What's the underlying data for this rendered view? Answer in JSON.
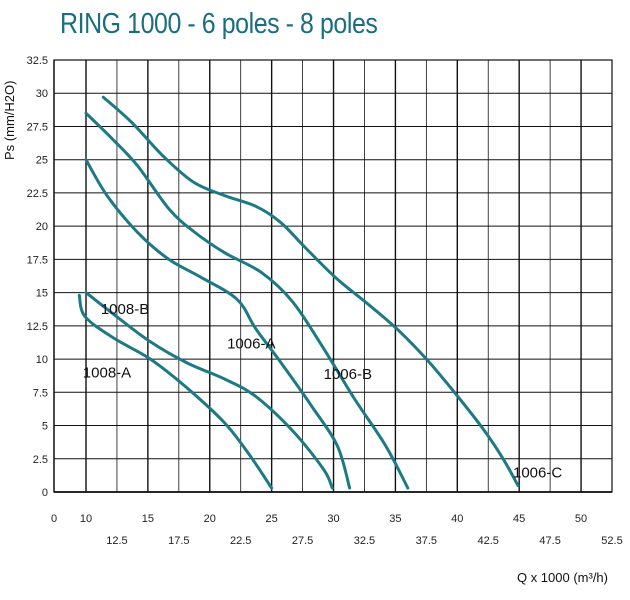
{
  "chart_data": {
    "type": "line",
    "title": "RING 1000 - 6 poles - 8 poles",
    "xlabel": "Q x 1000 (m³/h)",
    "ylabel": "Ps (mm/H2O)",
    "xlim": [
      0,
      52.5
    ],
    "ylim": [
      0,
      32.5
    ],
    "x_ticks_major": [
      "0",
      "10",
      "15",
      "20",
      "25",
      "30",
      "35",
      "40",
      "45",
      "50"
    ],
    "x_ticks_minor": [
      "12.5",
      "17.5",
      "22.5",
      "27.5",
      "32.5",
      "37.5",
      "42.5",
      "47.5",
      "52.5"
    ],
    "y_ticks": [
      "0",
      "2.5",
      "5",
      "7.5",
      "10",
      "12.5",
      "15",
      "17.5",
      "20",
      "22.5",
      "25",
      "27.5",
      "30",
      "32.5"
    ],
    "grid": true,
    "line_color": "#1d7a84",
    "series": [
      {
        "name": "1008-A",
        "points": [
          [
            0.7,
            14.8
          ],
          [
            2.5,
            13.2
          ],
          [
            5,
            11.6
          ],
          [
            8,
            10
          ],
          [
            11,
            7.8
          ],
          [
            14,
            5.2
          ],
          [
            16,
            2.8
          ],
          [
            17.8,
            0.3
          ]
        ],
        "label_at": [
          1.8,
          8.6
        ]
      },
      {
        "name": "1008-B",
        "points": [
          [
            2.8,
            15
          ],
          [
            5,
            13.4
          ],
          [
            8,
            11.3
          ],
          [
            11,
            9.7
          ],
          [
            14,
            8.5
          ],
          [
            16.5,
            7.2
          ],
          [
            19.5,
            4.6
          ],
          [
            22,
            1.7
          ],
          [
            22.7,
            0.3
          ]
        ],
        "label_at": [
          4,
          13.4
        ]
      },
      {
        "name": "1006-A",
        "points": [
          [
            2.8,
            25
          ],
          [
            4.5,
            22.3
          ],
          [
            7,
            19.5
          ],
          [
            9.5,
            17.5
          ],
          [
            12,
            16.2
          ],
          [
            15,
            14.5
          ],
          [
            16.5,
            12.3
          ],
          [
            18.5,
            9.8
          ],
          [
            21,
            6.5
          ],
          [
            23.1,
            3.5
          ],
          [
            24.1,
            0.3
          ]
        ],
        "label_at": [
          14.2,
          10.8
        ]
      },
      {
        "name": "1006-B",
        "points": [
          [
            2.8,
            28.5
          ],
          [
            5,
            26.5
          ],
          [
            7,
            24.5
          ],
          [
            9.5,
            21.3
          ],
          [
            11.5,
            19.6
          ],
          [
            14,
            18
          ],
          [
            17,
            16.5
          ],
          [
            19.5,
            14.3
          ],
          [
            22,
            10.8
          ],
          [
            24.5,
            7
          ],
          [
            27,
            3.5
          ],
          [
            28.8,
            0.3
          ]
        ],
        "label_at": [
          22,
          8.5
        ]
      },
      {
        "name": "1006-C",
        "points": [
          [
            4.2,
            29.7
          ],
          [
            6.5,
            27.8
          ],
          [
            9,
            25.3
          ],
          [
            11.5,
            23.3
          ],
          [
            14,
            22.3
          ],
          [
            16.5,
            21.5
          ],
          [
            18.5,
            20.3
          ],
          [
            20.5,
            18.4
          ],
          [
            23,
            16.1
          ],
          [
            25.5,
            14.2
          ],
          [
            28,
            12.2
          ],
          [
            30.5,
            9.8
          ],
          [
            33,
            7
          ],
          [
            35,
            4.6
          ],
          [
            36.5,
            2.5
          ],
          [
            37.7,
            0.5
          ]
        ],
        "label_at": [
          37.3,
          1.1
        ]
      }
    ]
  }
}
